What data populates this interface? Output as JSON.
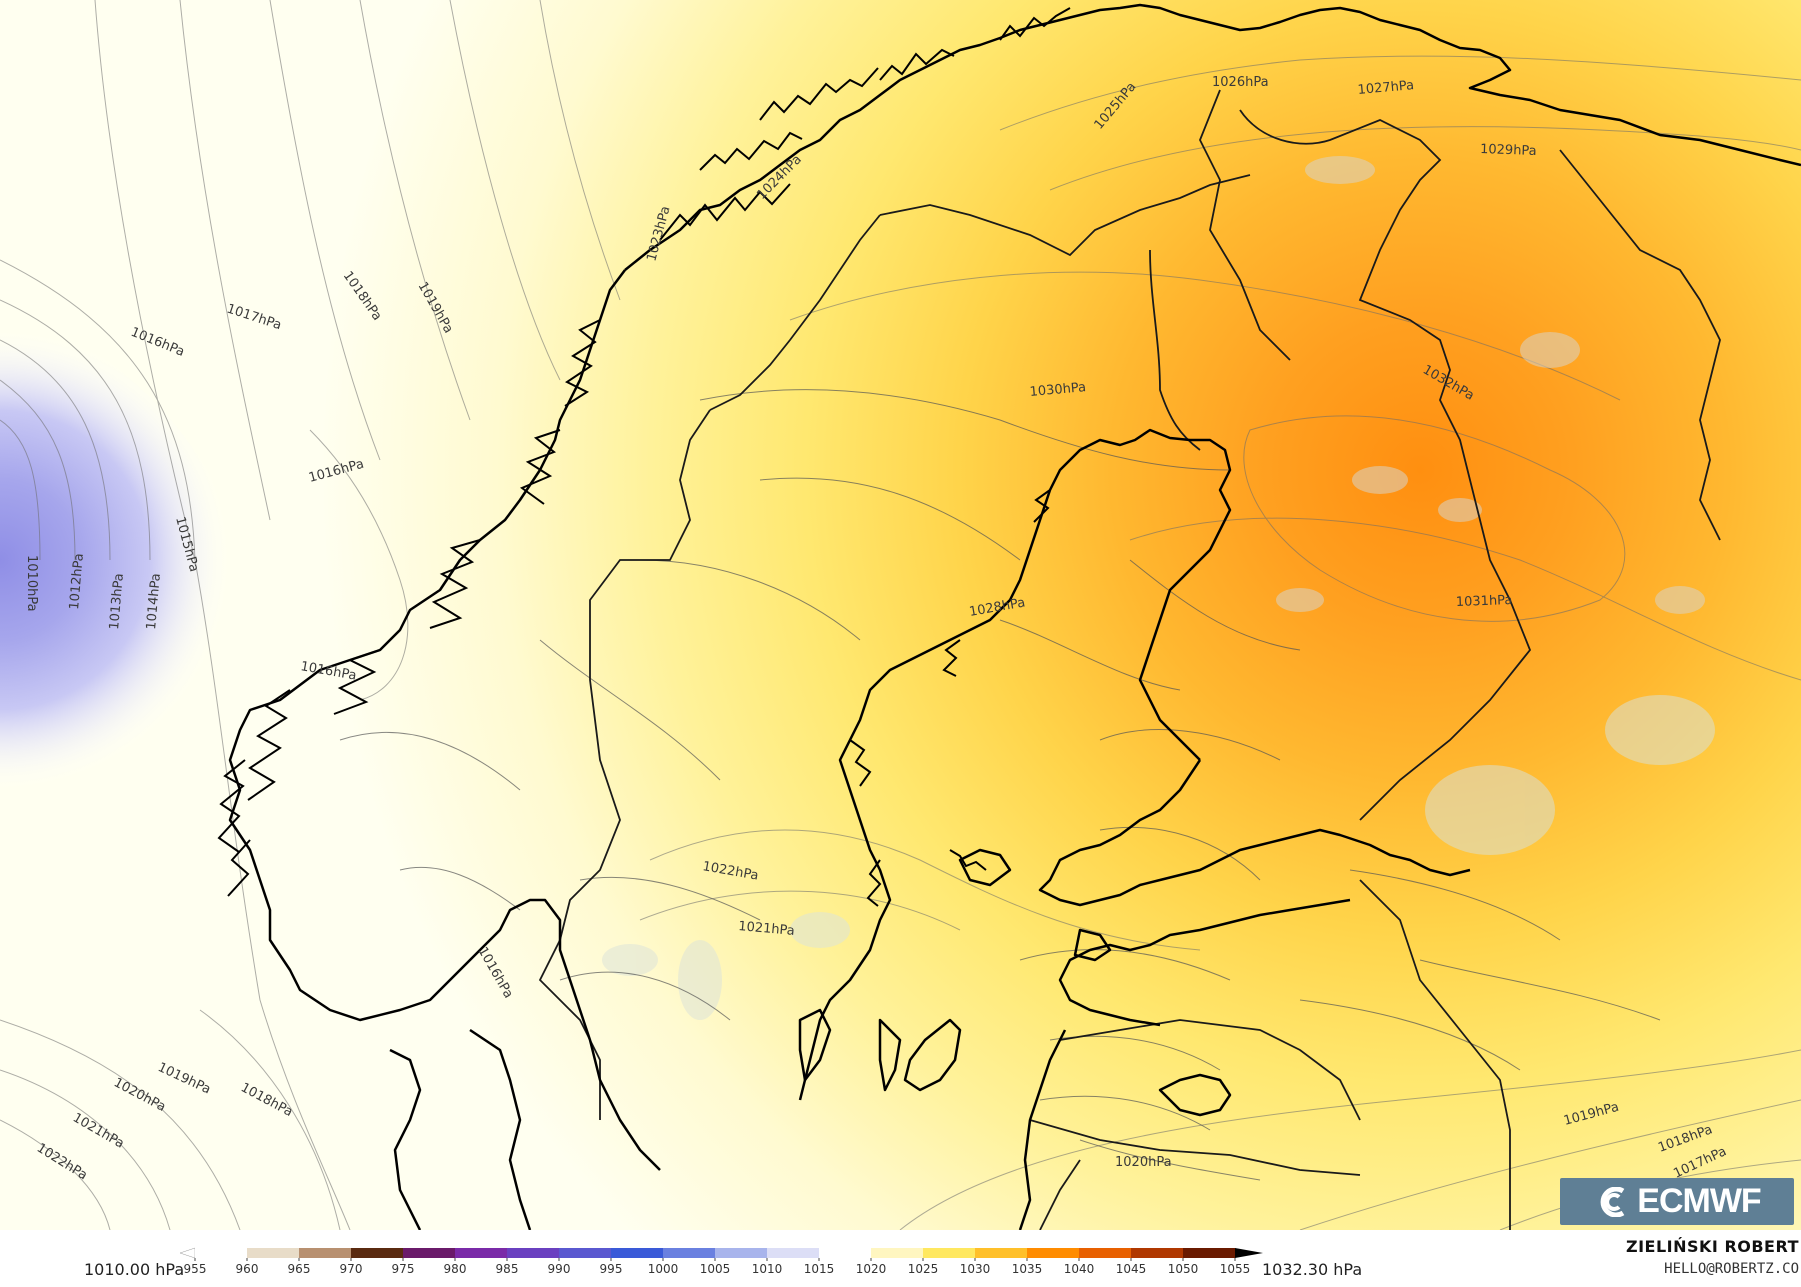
{
  "map": {
    "contour_labels": [
      "1010hPa",
      "1012hPa",
      "1013hPa",
      "1014hPa",
      "1015hPa",
      "1016hPa",
      "1017hPa",
      "1018hPa",
      "1019hPa",
      "1016hPa",
      "1016hPa",
      "1026hPa",
      "1027hPa",
      "1029hPa",
      "1025hPa",
      "1024hPa",
      "1023hPa",
      "1030hPa",
      "1032hPa",
      "1031hPa",
      "1028hPa",
      "1022hPa",
      "1021hPa",
      "1016hPa",
      "1019hPa",
      "1020hPa",
      "1021hPa",
      "1022hPa",
      "1018hPa",
      "1020hPa",
      "1019hPa",
      "1018hPa",
      "1017hPa"
    ]
  },
  "legend": {
    "min_value": "1010.00 hPa",
    "max_value": "1032.30 hPa",
    "ticks": [
      "955",
      "960",
      "965",
      "970",
      "975",
      "980",
      "985",
      "990",
      "995",
      "1000",
      "1005",
      "1010",
      "1015",
      "1020",
      "1025",
      "1030",
      "1035",
      "1040",
      "1045",
      "1050",
      "1055"
    ],
    "colors": [
      "#ffffff",
      "#e8dcc8",
      "#b89070",
      "#5a2a10",
      "#6a1a6a",
      "#7a2aa8",
      "#6a40c0",
      "#5a58d0",
      "#3a5ad8",
      "#6a80e0",
      "#a8b4ec",
      "#dcdef6",
      "#ffffff",
      "#fff6c0",
      "#ffe860",
      "#ffc02a",
      "#ff8c00",
      "#e86000",
      "#b03800",
      "#6a1a00",
      "#180400"
    ]
  },
  "credits": {
    "logo": "ECMWF",
    "author": "ZIELIŃSKI ROBERT",
    "email": "HELLO@ROBERTZ.CO"
  }
}
